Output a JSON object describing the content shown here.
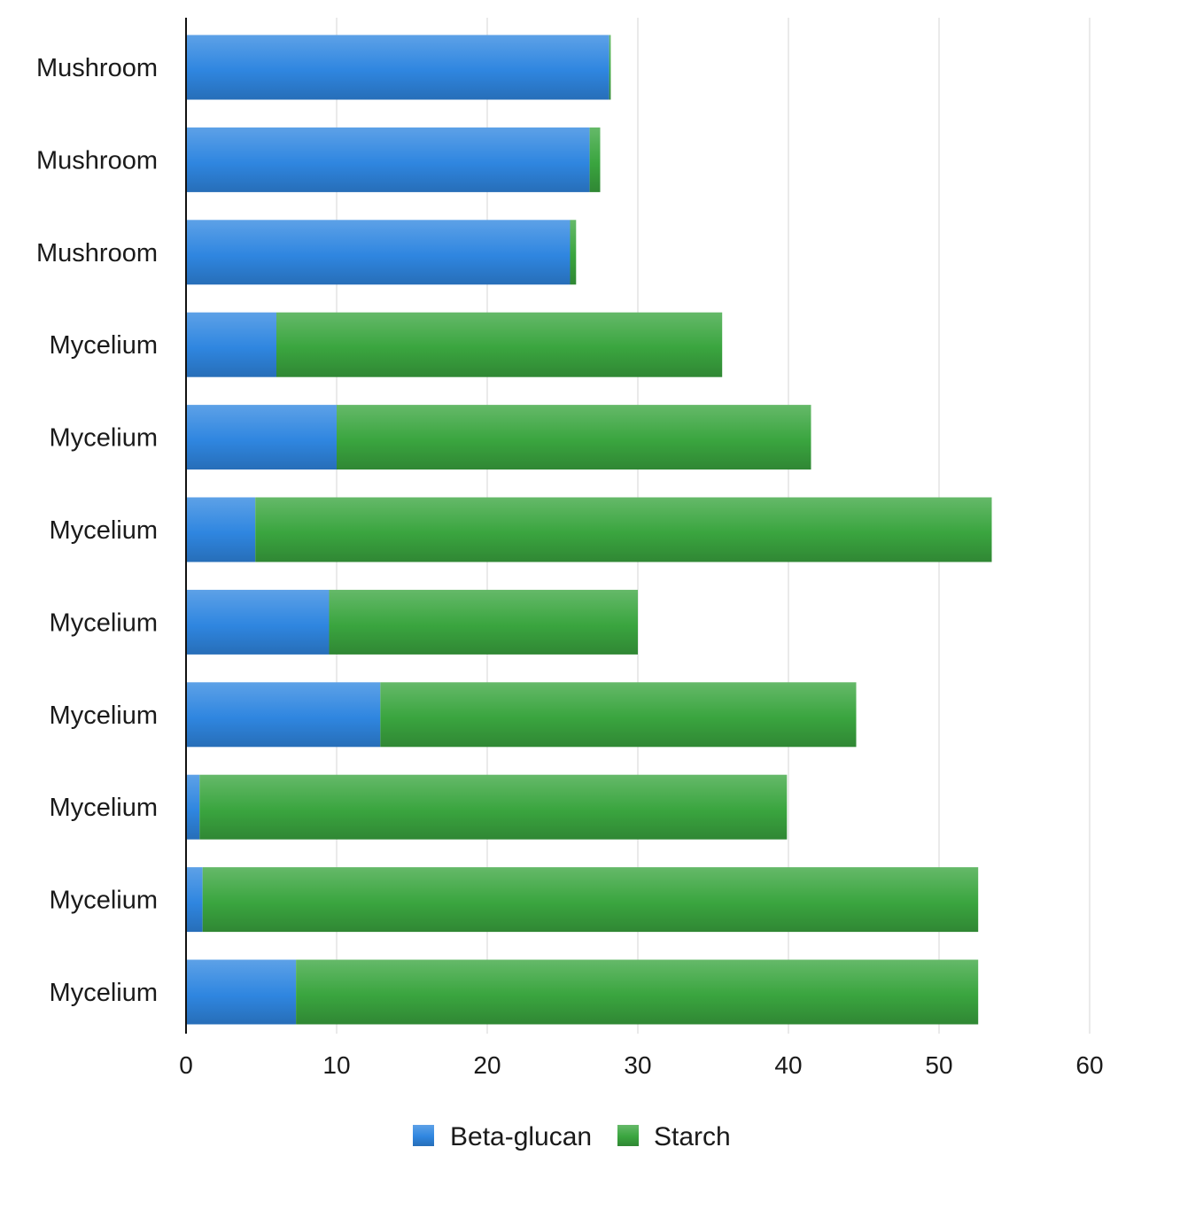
{
  "chart_data": {
    "type": "bar",
    "orientation": "horizontal",
    "stacked": true,
    "categories": [
      "Mushroom",
      "Mushroom",
      "Mushroom",
      "Mycelium",
      "Mycelium",
      "Mycelium",
      "Mycelium",
      "Mycelium",
      "Mycelium",
      "Mycelium",
      "Mycelium"
    ],
    "series": [
      {
        "name": "Beta-glucan",
        "color": "#2f86e0",
        "values": [
          28.1,
          26.8,
          25.5,
          6.0,
          10.0,
          4.6,
          9.5,
          12.9,
          0.9,
          1.1,
          7.3
        ]
      },
      {
        "name": "Starch",
        "color": "#3aa53f",
        "values": [
          0.1,
          0.7,
          0.4,
          29.6,
          31.5,
          48.9,
          20.5,
          31.6,
          39.0,
          51.5,
          45.3
        ]
      }
    ],
    "xlim": [
      0,
      60
    ],
    "xticks": [
      "0",
      "10",
      "20",
      "30",
      "40",
      "50",
      "60"
    ],
    "grid": "vertical",
    "legend_position": "bottom-center",
    "title": "",
    "xlabel": "",
    "ylabel": ""
  }
}
